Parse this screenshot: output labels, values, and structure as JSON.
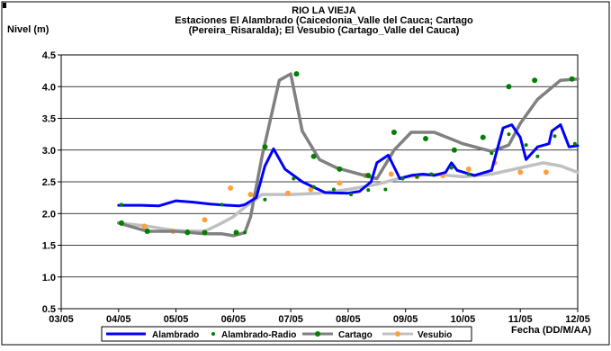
{
  "chart_data": {
    "type": "line",
    "title_lines": [
      "RIO LA VIEJA",
      "Estaciones El Alambrado (Caicedonia_Valle del Cauca; Cartago",
      "(Pereira_Risaralda);  El Vesubio (Cartago_Valle del Cauca)"
    ],
    "ylabel": "Nivel (m)",
    "xlabel": "Fecha (DD/M/AA)",
    "ylim": [
      0.5,
      4.5
    ],
    "y_ticks": [
      "0.5",
      "1.0",
      "1.5",
      "2.0",
      "2.5",
      "3.0",
      "3.5",
      "4.0",
      "4.5"
    ],
    "x_ticks": [
      "03/05",
      "04/05",
      "05/05",
      "06/05",
      "07/05",
      "08/05",
      "09/05",
      "10/05",
      "11/05",
      "12/05"
    ],
    "x_range": [
      0,
      9
    ],
    "grid": true,
    "legend_position": "bottom",
    "series": [
      {
        "name": "Alambrado",
        "color": "#0000ff",
        "style": "line",
        "x": [
          1.0,
          1.4,
          1.7,
          2.0,
          2.3,
          2.6,
          2.9,
          3.1,
          3.2,
          3.4,
          3.55,
          3.7,
          3.9,
          4.2,
          4.6,
          5.0,
          5.2,
          5.4,
          5.5,
          5.7,
          5.9,
          6.1,
          6.3,
          6.5,
          6.7,
          6.8,
          6.9,
          7.2,
          7.5,
          7.7,
          7.85,
          8.0,
          8.1,
          8.3,
          8.5,
          8.55,
          8.7,
          8.85,
          9.0
        ],
        "y": [
          2.13,
          2.13,
          2.12,
          2.2,
          2.18,
          2.15,
          2.13,
          2.12,
          2.14,
          2.25,
          2.75,
          3.02,
          2.7,
          2.5,
          2.33,
          2.32,
          2.35,
          2.5,
          2.8,
          2.92,
          2.55,
          2.6,
          2.62,
          2.6,
          2.65,
          2.8,
          2.68,
          2.6,
          2.68,
          3.35,
          3.4,
          3.2,
          2.85,
          3.05,
          3.1,
          3.3,
          3.4,
          3.05,
          3.07
        ]
      },
      {
        "name": "Alambrado-Radio",
        "color": "#008000",
        "style": "markers",
        "x": [
          1.05,
          1.5,
          2.2,
          2.8,
          3.2,
          3.55,
          4.05,
          4.4,
          4.75,
          5.05,
          5.35,
          5.65,
          5.95,
          6.2,
          6.45,
          6.8,
          7.1,
          7.5,
          7.8,
          8.1,
          8.3,
          8.6,
          8.95
        ],
        "y": [
          2.14,
          1.74,
          1.72,
          2.14,
          1.7,
          2.22,
          2.55,
          2.42,
          2.38,
          2.3,
          2.37,
          2.38,
          2.55,
          2.58,
          2.62,
          2.72,
          2.62,
          2.95,
          3.25,
          3.08,
          2.9,
          3.22,
          3.1
        ]
      },
      {
        "name": "Cartago",
        "color": "#808080",
        "style": "line-markers",
        "marker_color": "#008000",
        "x": [
          1.0,
          1.5,
          2.0,
          2.5,
          2.8,
          3.0,
          3.2,
          3.3,
          3.5,
          3.8,
          4.0,
          4.2,
          4.5,
          4.8,
          5.2,
          5.5,
          5.8,
          6.1,
          6.5,
          7.0,
          7.5,
          7.8,
          8.0,
          8.3,
          8.7,
          9.0
        ],
        "y": [
          1.85,
          1.72,
          1.72,
          1.68,
          1.68,
          1.65,
          1.7,
          1.95,
          2.9,
          4.1,
          4.2,
          3.3,
          2.85,
          2.72,
          2.62,
          2.55,
          3.0,
          3.28,
          3.28,
          3.1,
          2.98,
          3.08,
          3.42,
          3.8,
          4.1,
          4.12
        ],
        "markers_x": [
          1.05,
          1.5,
          2.2,
          2.5,
          3.05,
          3.55,
          4.1,
          4.4,
          4.85,
          5.35,
          5.8,
          6.35,
          6.85,
          7.35,
          7.8,
          8.25,
          8.9
        ],
        "markers_y": [
          1.85,
          1.72,
          1.7,
          1.7,
          1.7,
          3.05,
          4.2,
          2.9,
          2.7,
          2.6,
          3.28,
          3.18,
          3.0,
          3.2,
          4.0,
          4.1,
          4.12
        ]
      },
      {
        "name": "Vesubio",
        "color": "#c0c0c0",
        "style": "line-markers",
        "marker_color": "#ffa040",
        "x": [
          1.0,
          1.5,
          2.0,
          2.5,
          2.8,
          3.0,
          3.2,
          3.5,
          4.0,
          4.5,
          5.0,
          5.5,
          6.0,
          6.5,
          7.0,
          7.5,
          8.0,
          8.4,
          8.7,
          9.0
        ],
        "y": [
          1.85,
          1.8,
          1.73,
          1.72,
          1.85,
          1.95,
          2.1,
          2.3,
          2.3,
          2.32,
          2.38,
          2.46,
          2.58,
          2.62,
          2.58,
          2.62,
          2.72,
          2.8,
          2.75,
          2.65
        ],
        "markers_x": [
          1.05,
          1.45,
          1.95,
          2.5,
          2.95,
          3.3,
          3.95,
          4.35,
          4.85,
          5.3,
          5.75,
          6.2,
          6.65,
          7.1,
          7.55,
          8.0,
          8.45
        ],
        "markers_y": [
          1.85,
          1.8,
          1.72,
          1.9,
          2.4,
          2.3,
          2.32,
          2.38,
          2.48,
          2.6,
          2.62,
          2.58,
          2.6,
          2.7,
          2.8,
          2.65,
          2.65
        ]
      }
    ]
  }
}
